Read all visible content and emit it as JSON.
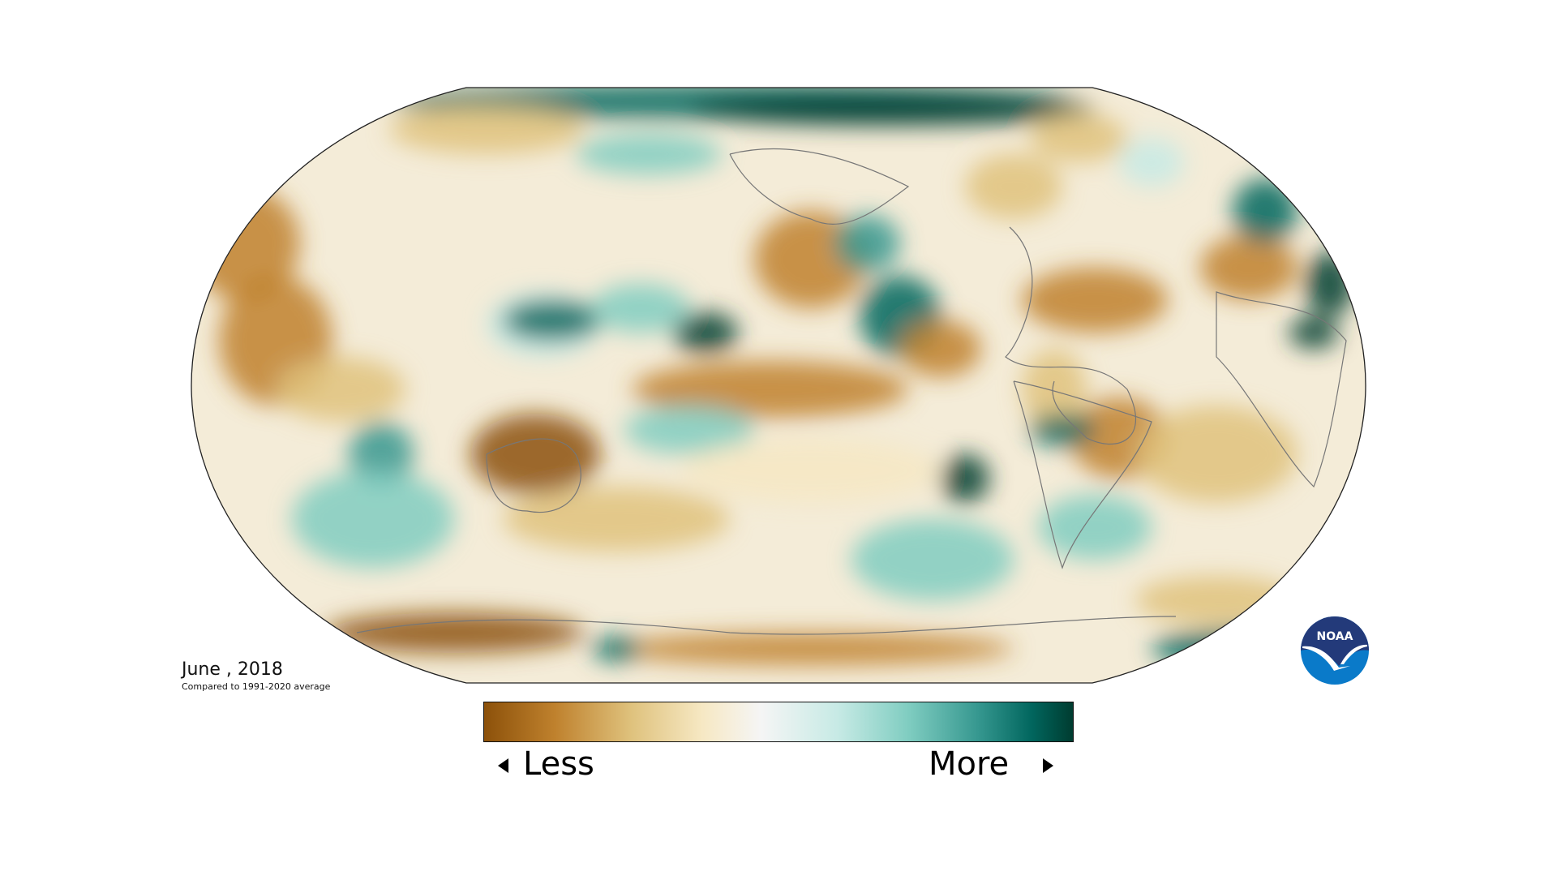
{
  "title": {
    "date": "June , 2018",
    "subtitle": "Compared to 1991-2020 average"
  },
  "legend": {
    "less_label": "Less",
    "more_label": "More",
    "colors": [
      "#8c510a",
      "#bf812d",
      "#dfc27d",
      "#f6e8c3",
      "#f5f5f5",
      "#c7eae5",
      "#80cdc1",
      "#35978f",
      "#01665e",
      "#003c30"
    ]
  },
  "logo": {
    "text": "NOAA",
    "dark": "#233a7a",
    "light": "#0a7ac9"
  }
}
